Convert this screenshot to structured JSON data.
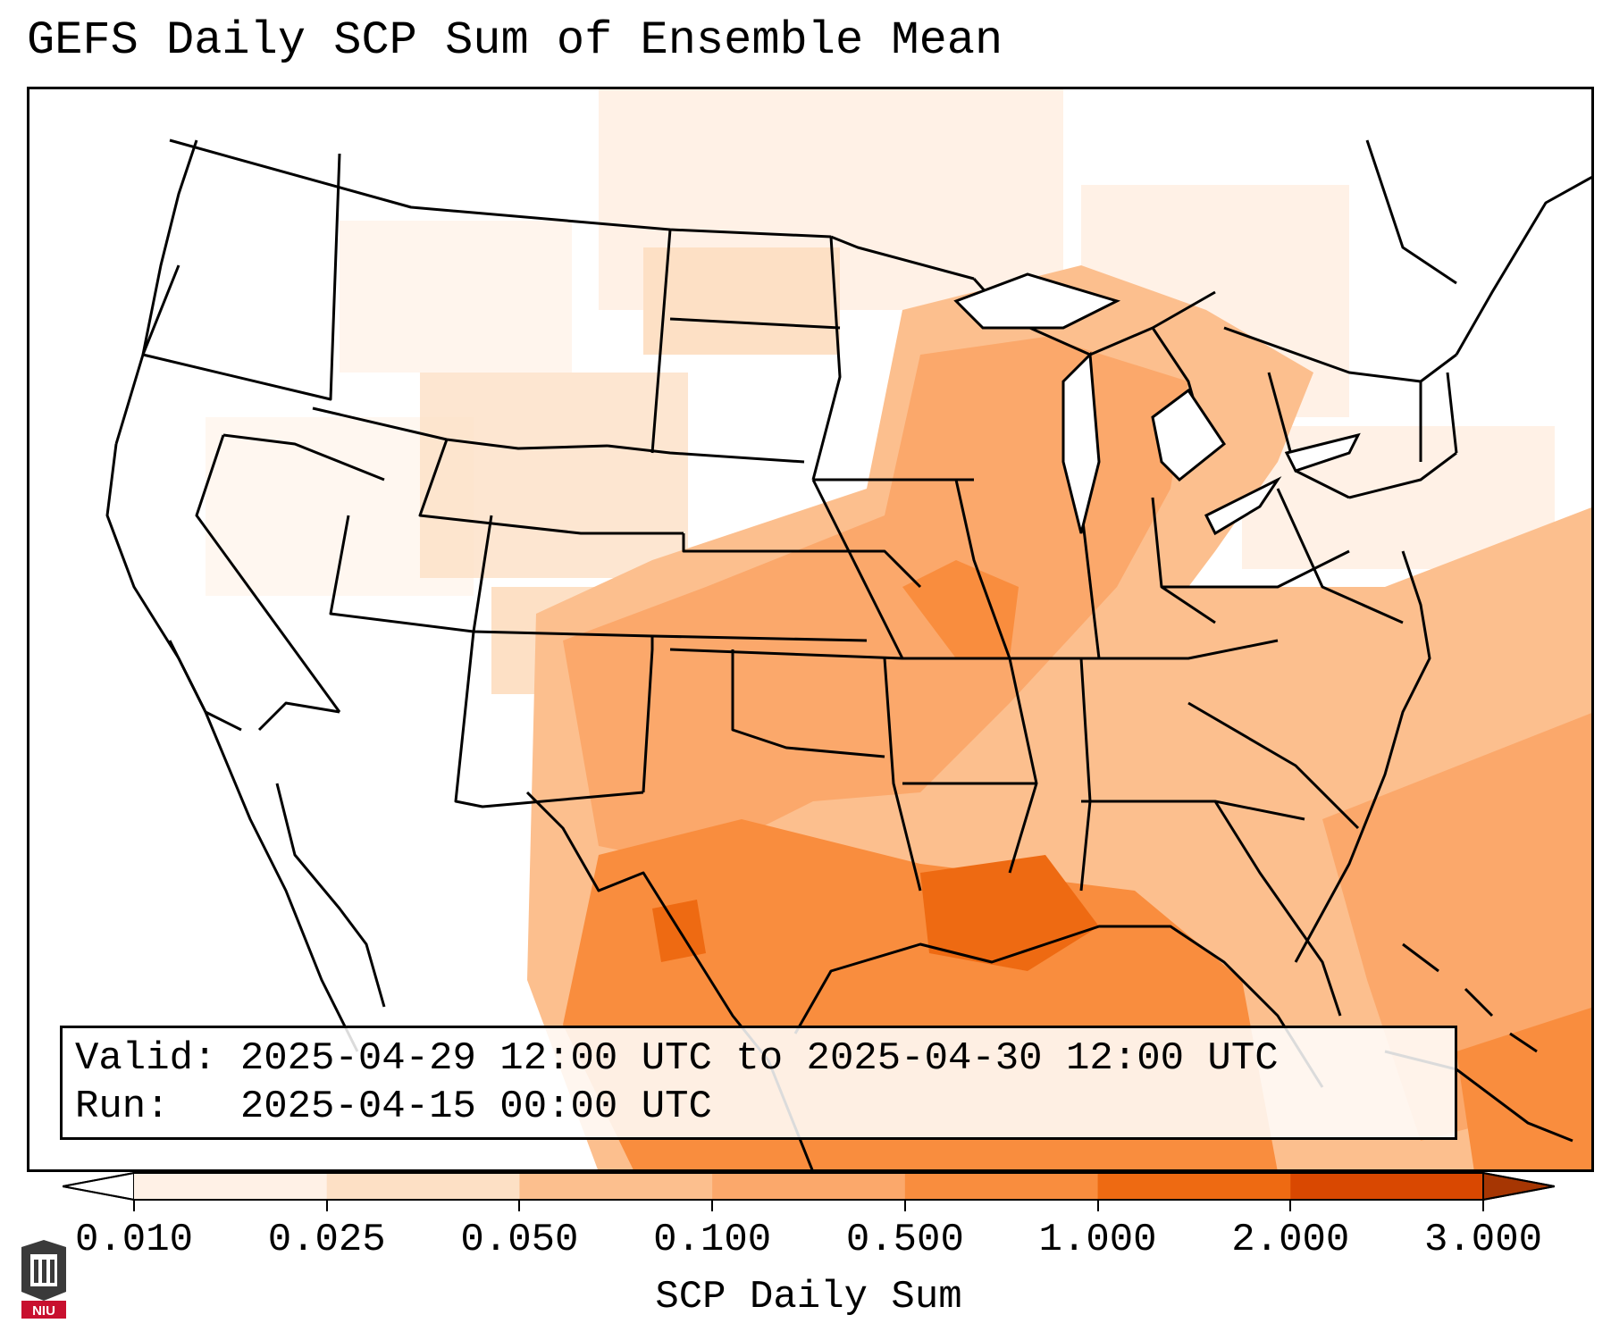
{
  "title": "GEFS Daily SCP Sum of Ensemble Mean",
  "info": {
    "valid_label": "Valid:",
    "valid_text": "2025-04-29 12:00 UTC to 2025-04-30 12:00 UTC",
    "run_label": "Run:",
    "run_text": "2025-04-15 00:00 UTC"
  },
  "colorbar": {
    "label": "SCP Daily Sum",
    "ticks": [
      "0.010",
      "0.025",
      "0.050",
      "0.100",
      "0.500",
      "1.000",
      "2.000",
      "3.000"
    ],
    "colors": [
      "#fff1e6",
      "#fde0c5",
      "#fcbf8e",
      "#fba86b",
      "#f98d3e",
      "#ee6a12",
      "#d94801"
    ],
    "under_color": "#ffffff",
    "over_color": "#a63603"
  },
  "logo": {
    "text": "NIU",
    "icon": "university-logo-icon"
  }
}
